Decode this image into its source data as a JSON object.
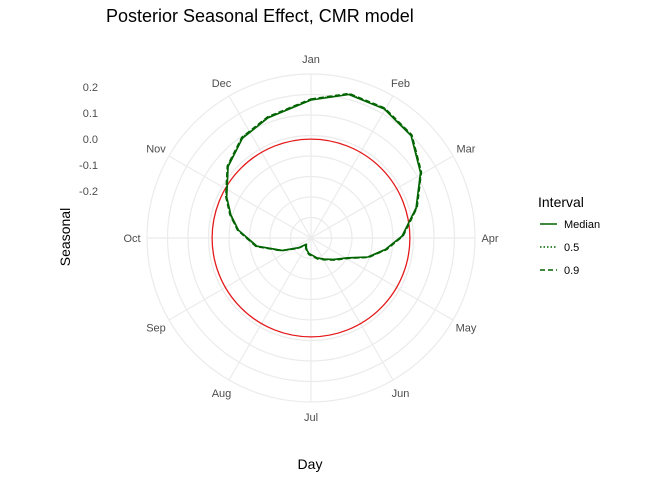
{
  "chart_data": {
    "type": "line",
    "coordinate_system": "polar",
    "title": "Posterior Seasonal Effect, CMR model",
    "xlabel": "Day",
    "ylabel": "Seasonal",
    "months": [
      "Jan",
      "Feb",
      "Mar",
      "Apr",
      "May",
      "Jun",
      "Jul",
      "Aug",
      "Sep",
      "Oct",
      "Nov",
      "Dec"
    ],
    "y_ticks": [
      "0.2",
      "0.1",
      "0.0",
      "-0.1",
      "-0.2"
    ],
    "y_tick_values": [
      0.2,
      0.1,
      0.0,
      -0.1,
      -0.2
    ],
    "rlim": [
      -0.38,
      0.25
    ],
    "reference_line": {
      "value": 0.0,
      "color": "#e41a1c"
    },
    "grid": true,
    "legend": {
      "title": "Interval",
      "placement": "right",
      "entries": [
        {
          "name": "Median",
          "dash": "solid"
        },
        {
          "name": "0.5",
          "dash": "dotted"
        },
        {
          "name": "0.9",
          "dash": "dashed"
        }
      ]
    },
    "series_color": "#006400",
    "series": [
      {
        "name": "Median",
        "x_day": [
          0,
          15,
          30,
          45,
          60,
          75,
          90,
          100,
          110,
          120,
          135,
          150,
          165,
          180,
          190,
          200,
          210,
          220,
          235,
          250,
          265,
          280,
          290,
          300,
          315,
          330,
          345,
          365
        ],
        "y": [
          0.15,
          0.19,
          0.19,
          0.17,
          0.11,
          0.04,
          -0.03,
          -0.09,
          -0.15,
          -0.22,
          -0.26,
          -0.285,
          -0.3,
          -0.315,
          -0.32,
          -0.33,
          -0.34,
          -0.35,
          -0.32,
          -0.26,
          -0.17,
          -0.1,
          -0.06,
          -0.02,
          0.04,
          0.085,
          0.11,
          0.15
        ]
      },
      {
        "name": "0.5",
        "x_day": [
          0,
          15,
          30,
          45,
          60,
          75,
          90,
          100,
          110,
          120,
          135,
          150,
          165,
          180,
          190,
          200,
          210,
          220,
          235,
          250,
          265,
          280,
          290,
          300,
          315,
          330,
          345,
          365
        ],
        "y": [
          0.152,
          0.192,
          0.192,
          0.172,
          0.112,
          0.042,
          -0.028,
          -0.088,
          -0.148,
          -0.218,
          -0.258,
          -0.283,
          -0.298,
          -0.313,
          -0.318,
          -0.328,
          -0.338,
          -0.348,
          -0.318,
          -0.258,
          -0.168,
          -0.098,
          -0.058,
          -0.018,
          0.042,
          0.087,
          0.112,
          0.152
        ]
      },
      {
        "name": "0.9",
        "x_day": [
          0,
          15,
          30,
          45,
          60,
          75,
          90,
          100,
          110,
          120,
          135,
          150,
          165,
          180,
          190,
          200,
          210,
          220,
          235,
          250,
          265,
          280,
          290,
          300,
          315,
          330,
          345,
          365
        ],
        "y": [
          0.154,
          0.194,
          0.194,
          0.174,
          0.114,
          0.044,
          -0.026,
          -0.086,
          -0.146,
          -0.216,
          -0.256,
          -0.281,
          -0.296,
          -0.311,
          -0.316,
          -0.326,
          -0.336,
          -0.346,
          -0.316,
          -0.256,
          -0.166,
          -0.096,
          -0.056,
          -0.016,
          0.044,
          0.089,
          0.114,
          0.154
        ]
      }
    ]
  }
}
